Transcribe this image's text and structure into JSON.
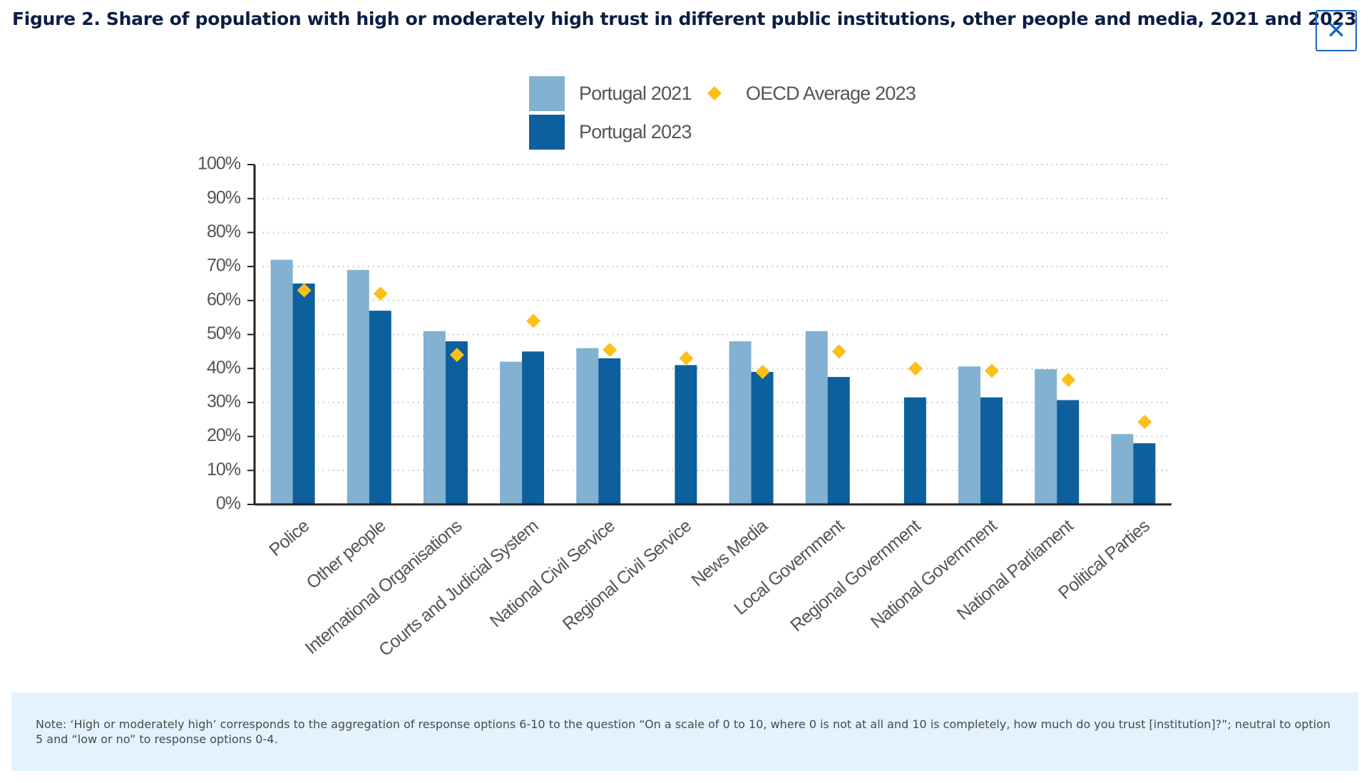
{
  "chart_data": {
    "type": "bar",
    "title": "Figure 2. Share of population with high or moderately high trust in different public institutions, other people and media, 2021 and 2023",
    "note": "Note: ‘High or moderately high’ corresponds to the aggregation of response options 6-10 to the question “On a scale of 0 to 10, where 0 is not at all and 10 is completely, how much do you trust [institution]?”; neutral to option 5 and “low or no” to response options 0-4.",
    "categories": [
      "Police",
      "Other people",
      "International Organisations",
      "Courts and Judicial System",
      "National Civil Service",
      "Regional Civil Service",
      "News Media",
      "Local Government",
      "Regional Government",
      "National Government",
      "National Parliament",
      "Political Parties"
    ],
    "series": [
      {
        "name": "Portugal 2021",
        "color": "#82b1d1",
        "values": [
          72,
          69,
          51,
          42,
          46,
          null,
          48,
          51,
          null,
          40.6,
          39.8,
          20.7
        ]
      },
      {
        "name": "Portugal 2023",
        "color": "#0d5f9e",
        "values": [
          65,
          57,
          48,
          45,
          43,
          41,
          39,
          37.5,
          31.5,
          31.5,
          30.7,
          18
        ]
      },
      {
        "name": "OECD Average 2023",
        "color": "#fbbf16",
        "marker": "diamond",
        "values": [
          63,
          62,
          44,
          54,
          45.5,
          43,
          39,
          45,
          40,
          39.3,
          36.7,
          24.3
        ]
      }
    ],
    "ylim": [
      0,
      100
    ],
    "yticks": [
      {
        "value": 0,
        "label": "0%"
      },
      {
        "value": 10,
        "label": "10%"
      },
      {
        "value": 20,
        "label": "20%"
      },
      {
        "value": 30,
        "label": "30%"
      },
      {
        "value": 40,
        "label": "40%"
      },
      {
        "value": 50,
        "label": "50%"
      },
      {
        "value": 60,
        "label": "60%"
      },
      {
        "value": 70,
        "label": "70%"
      },
      {
        "value": 80,
        "label": "80%"
      },
      {
        "value": 90,
        "label": "90%"
      },
      {
        "value": 100,
        "label": "100%"
      }
    ],
    "grid": true
  }
}
